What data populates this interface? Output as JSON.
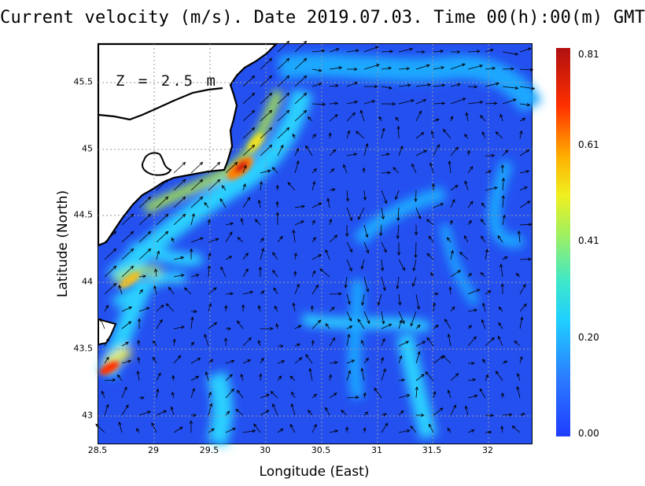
{
  "title": "Current velocity (m/s). Date 2019.07.03. Time 00(h):00(m) GMT",
  "depth_label": "Z = 2.5 m",
  "x_axis": {
    "label": "Longitude (East)",
    "ticks": [
      "28.5",
      "29",
      "29.5",
      "30",
      "30.5",
      "31",
      "31.5",
      "32"
    ]
  },
  "y_axis": {
    "label": "Latitude (North)",
    "ticks": [
      "45.5",
      "45",
      "44.5",
      "44",
      "43.5",
      "43"
    ]
  },
  "colorbar": {
    "ticks": [
      "0.81",
      "0.61",
      "0.41",
      "0.20",
      "0.00"
    ]
  },
  "colors": {
    "land": "#ffffff",
    "sea_low": "#2b5cf0",
    "high_current": "#e01010"
  }
}
